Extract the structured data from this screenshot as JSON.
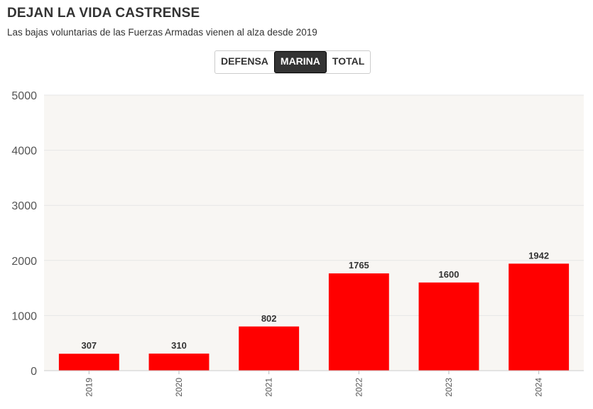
{
  "header": {
    "title": "DEJAN LA VIDA CASTRENSE",
    "subtitle": "Las bajas voluntarias de las Fuerzas Armadas vienen al alza desde 2019"
  },
  "toggle": {
    "options": [
      "DEFENSA",
      "MARINA",
      "TOTAL"
    ],
    "selected": "MARINA"
  },
  "colors": {
    "bar": "#ff0000",
    "plot_background": "#f8f6f3",
    "gridline": "#e6e6e6"
  },
  "chart_data": {
    "type": "bar",
    "title": "DEJAN LA VIDA CASTRENSE",
    "subtitle": "Las bajas voluntarias de las Fuerzas Armadas vienen al alza desde 2019",
    "categories": [
      "2019",
      "2020",
      "2021",
      "2022",
      "2023",
      "2024"
    ],
    "values": [
      307,
      310,
      802,
      1765,
      1600,
      1942
    ],
    "data_labels": [
      "307",
      "310",
      "802",
      "1765",
      "1600",
      "1942"
    ],
    "yticks": [
      "0",
      "1000",
      "2000",
      "3000",
      "4000",
      "5000"
    ],
    "ylim": [
      0,
      5000
    ],
    "xlabel": "",
    "ylabel": "",
    "grid": true,
    "series_name": "MARINA"
  }
}
